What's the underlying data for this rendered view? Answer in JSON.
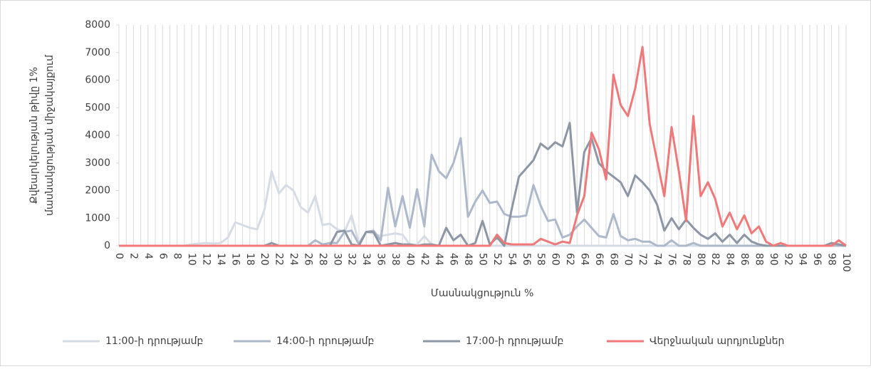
{
  "chart_data": {
    "type": "line",
    "ylabel": [
      "Քվեարկելության թիվը 1%",
      "մասնակցության միջակայքում"
    ],
    "xlabel": "Մասնակցություն %",
    "x": [
      0,
      1,
      2,
      3,
      4,
      5,
      6,
      7,
      8,
      9,
      10,
      11,
      12,
      13,
      14,
      15,
      16,
      17,
      18,
      19,
      20,
      21,
      22,
      23,
      24,
      25,
      26,
      27,
      28,
      29,
      30,
      31,
      32,
      33,
      34,
      35,
      36,
      37,
      38,
      39,
      40,
      41,
      42,
      43,
      44,
      45,
      46,
      47,
      48,
      49,
      50,
      51,
      52,
      53,
      54,
      55,
      56,
      57,
      58,
      59,
      60,
      61,
      62,
      63,
      64,
      65,
      66,
      67,
      68,
      69,
      70,
      71,
      72,
      73,
      74,
      75,
      76,
      77,
      78,
      79,
      80,
      81,
      82,
      83,
      84,
      85,
      86,
      87,
      88,
      89,
      90,
      91,
      92,
      93,
      94,
      95,
      96,
      97,
      98,
      99,
      100
    ],
    "xlim": [
      0,
      100
    ],
    "xticks": [
      0,
      2,
      4,
      6,
      8,
      10,
      12,
      14,
      16,
      18,
      20,
      22,
      24,
      26,
      28,
      30,
      32,
      34,
      36,
      38,
      40,
      42,
      44,
      46,
      48,
      50,
      52,
      54,
      56,
      58,
      60,
      62,
      64,
      66,
      68,
      70,
      72,
      74,
      76,
      78,
      80,
      82,
      84,
      86,
      88,
      90,
      92,
      94,
      96,
      98,
      100
    ],
    "ylim": [
      0,
      8000
    ],
    "yticks": [
      0,
      1000,
      2000,
      3000,
      4000,
      5000,
      6000,
      7000,
      8000
    ],
    "grid": true,
    "legend": "bottom",
    "series": [
      {
        "name": "11:00-ի դրությամբ",
        "color": "#d6dce5",
        "values": [
          0,
          0,
          0,
          0,
          0,
          0,
          0,
          0,
          0,
          0,
          50,
          80,
          100,
          80,
          100,
          300,
          850,
          750,
          650,
          600,
          1300,
          2700,
          1900,
          2200,
          2000,
          1400,
          1200,
          1800,
          750,
          800,
          600,
          500,
          1100,
          100,
          500,
          450,
          350,
          400,
          450,
          400,
          50,
          50,
          350,
          50,
          0,
          0,
          0,
          0,
          0,
          0,
          0,
          0,
          0,
          0,
          0,
          0,
          0,
          0,
          0,
          0,
          0,
          0,
          0,
          0,
          0,
          0,
          0,
          0,
          0,
          0,
          0,
          0,
          0,
          0,
          0,
          0,
          0,
          0,
          0,
          0,
          0,
          0,
          0,
          0,
          0,
          0,
          0,
          0,
          0,
          0,
          0,
          0,
          0,
          0,
          0,
          0,
          0,
          0,
          0,
          0,
          0
        ]
      },
      {
        "name": "14:00-ի դրությամբ",
        "color": "#adb9ca",
        "values": [
          0,
          0,
          0,
          0,
          0,
          0,
          0,
          0,
          0,
          0,
          0,
          0,
          0,
          0,
          0,
          0,
          0,
          0,
          0,
          0,
          0,
          0,
          0,
          0,
          0,
          0,
          0,
          200,
          50,
          100,
          100,
          500,
          550,
          50,
          500,
          550,
          200,
          2100,
          700,
          1800,
          650,
          2050,
          700,
          3300,
          2700,
          2450,
          3000,
          3900,
          1050,
          1600,
          2000,
          1550,
          1600,
          1150,
          1050,
          1050,
          1100,
          2200,
          1450,
          900,
          950,
          300,
          400,
          700,
          950,
          650,
          350,
          300,
          1150,
          350,
          200,
          250,
          150,
          150,
          0,
          0,
          200,
          0,
          0,
          100,
          0,
          0,
          0,
          0,
          0,
          0,
          0,
          0,
          0,
          0,
          0,
          0,
          0,
          0,
          0,
          0,
          0,
          0,
          0,
          0,
          0
        ]
      },
      {
        "name": "17:00-ի դրությամբ",
        "color": "#8c96a5",
        "values": [
          0,
          0,
          0,
          0,
          0,
          0,
          0,
          0,
          0,
          0,
          0,
          0,
          0,
          0,
          0,
          0,
          0,
          0,
          0,
          0,
          0,
          100,
          0,
          0,
          0,
          0,
          0,
          0,
          0,
          0,
          500,
          550,
          50,
          0,
          500,
          500,
          0,
          50,
          100,
          50,
          50,
          0,
          50,
          50,
          0,
          650,
          200,
          400,
          0,
          100,
          900,
          50,
          300,
          0,
          1300,
          2500,
          2800,
          3100,
          3700,
          3500,
          3750,
          3600,
          4450,
          1200,
          3400,
          3900,
          3000,
          2700,
          2500,
          2300,
          1800,
          2550,
          2300,
          2000,
          1500,
          550,
          1000,
          600,
          950,
          650,
          400,
          250,
          450,
          150,
          400,
          100,
          400,
          150,
          50,
          0,
          0,
          0,
          0,
          0,
          0,
          0,
          0,
          0,
          100,
          50,
          0
        ]
      },
      {
        "name": "Վերջնական արդյունքներ",
        "color": "#f07878",
        "values": [
          0,
          0,
          0,
          0,
          0,
          0,
          0,
          0,
          0,
          0,
          0,
          0,
          0,
          0,
          0,
          0,
          0,
          0,
          0,
          0,
          0,
          0,
          0,
          0,
          0,
          0,
          0,
          0,
          0,
          0,
          0,
          0,
          0,
          0,
          0,
          0,
          0,
          0,
          0,
          0,
          0,
          0,
          0,
          0,
          0,
          0,
          0,
          0,
          0,
          0,
          0,
          0,
          400,
          100,
          50,
          50,
          50,
          50,
          250,
          150,
          50,
          150,
          100,
          1100,
          1800,
          4100,
          3500,
          2400,
          6200,
          5100,
          4700,
          5700,
          7200,
          4400,
          3100,
          1800,
          4300,
          2700,
          900,
          4700,
          1800,
          2300,
          1700,
          700,
          1200,
          600,
          1100,
          450,
          700,
          150,
          0,
          100,
          0,
          0,
          0,
          0,
          0,
          0,
          0,
          200,
          0
        ]
      }
    ]
  }
}
